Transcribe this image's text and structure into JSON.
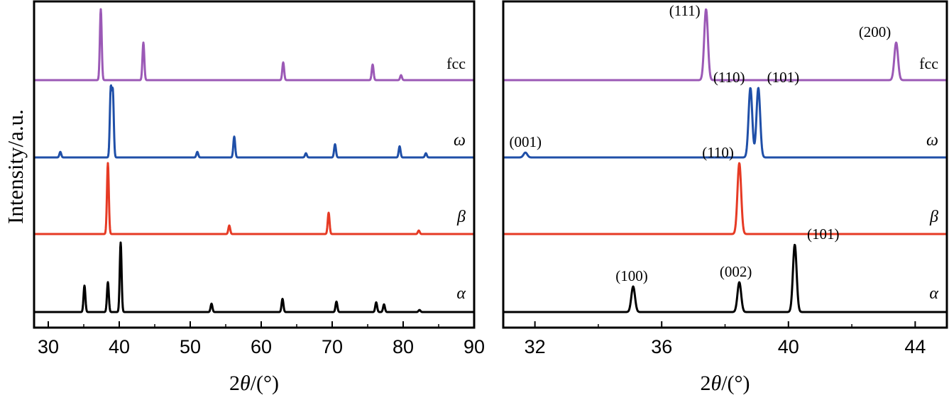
{
  "ylabel": "Intensity/a.u.",
  "chart_data": [
    {
      "type": "line",
      "panel": "left",
      "xlabel": "2θ/(°)",
      "xlabel_parts": [
        "2",
        "θ",
        "/(°)"
      ],
      "ylabel": "Intensity/a.u.",
      "xlim": [
        28,
        90
      ],
      "xticks": [
        30,
        40,
        50,
        60,
        70,
        80,
        90
      ],
      "grid": false,
      "series": [
        {
          "name": "fcc",
          "color": "#9b59b6",
          "peaks": [
            [
              37.4,
              1.0
            ],
            [
              43.4,
              0.53
            ],
            [
              63.1,
              0.25
            ],
            [
              75.7,
              0.22
            ],
            [
              79.7,
              0.07
            ]
          ]
        },
        {
          "name": "ω",
          "color": "#1f4fa8",
          "peaks": [
            [
              31.7,
              0.08
            ],
            [
              38.8,
              0.96
            ],
            [
              39.1,
              0.92
            ],
            [
              51.0,
              0.08
            ],
            [
              56.2,
              0.3
            ],
            [
              66.3,
              0.06
            ],
            [
              70.4,
              0.19
            ],
            [
              79.5,
              0.16
            ],
            [
              83.2,
              0.06
            ]
          ]
        },
        {
          "name": "β",
          "color": "#e63a24",
          "peaks": [
            [
              38.4,
              1.0
            ],
            [
              55.5,
              0.12
            ],
            [
              69.5,
              0.3
            ],
            [
              82.2,
              0.05
            ]
          ]
        },
        {
          "name": "α",
          "color": "#000000",
          "peaks": [
            [
              35.1,
              0.38
            ],
            [
              38.4,
              0.43
            ],
            [
              40.2,
              1.0
            ],
            [
              53.0,
              0.12
            ],
            [
              63.0,
              0.19
            ],
            [
              70.6,
              0.15
            ],
            [
              76.2,
              0.14
            ],
            [
              77.3,
              0.11
            ],
            [
              82.3,
              0.03
            ]
          ]
        }
      ]
    },
    {
      "type": "line",
      "panel": "right",
      "xlabel": "2θ/(°)",
      "xlabel_parts": [
        "2",
        "θ",
        "/(°)"
      ],
      "xlim": [
        31,
        45
      ],
      "xticks": [
        32,
        36,
        40,
        44
      ],
      "grid": false,
      "series": [
        {
          "name": "fcc",
          "color": "#9b59b6",
          "peaks": [
            [
              37.4,
              1.0
            ],
            [
              43.4,
              0.53
            ]
          ]
        },
        {
          "name": "ω",
          "color": "#1f4fa8",
          "peaks": [
            [
              31.7,
              0.07
            ],
            [
              38.8,
              1.0
            ],
            [
              39.05,
              1.0
            ]
          ]
        },
        {
          "name": "β",
          "color": "#e63a24",
          "peaks": [
            [
              38.45,
              1.0
            ]
          ]
        },
        {
          "name": "α",
          "color": "#000000",
          "peaks": [
            [
              35.1,
              0.36
            ],
            [
              38.45,
              0.42
            ],
            [
              40.2,
              0.95
            ]
          ]
        }
      ],
      "annotations": [
        {
          "series": "fcc",
          "text": "(111)",
          "x": 37.4
        },
        {
          "series": "fcc",
          "text": "(200)",
          "x": 43.4
        },
        {
          "series": "ω",
          "text": "(001)",
          "x": 31.7
        },
        {
          "series": "ω",
          "text": "(110)",
          "x": 38.8
        },
        {
          "series": "ω",
          "text": "(101)",
          "x": 39.05
        },
        {
          "series": "β",
          "text": "(110)",
          "x": 38.45
        },
        {
          "series": "α",
          "text": "(100)",
          "x": 35.1
        },
        {
          "series": "α",
          "text": "(002)",
          "x": 38.45
        },
        {
          "series": "α",
          "text": "(101)",
          "x": 40.2
        }
      ]
    }
  ]
}
